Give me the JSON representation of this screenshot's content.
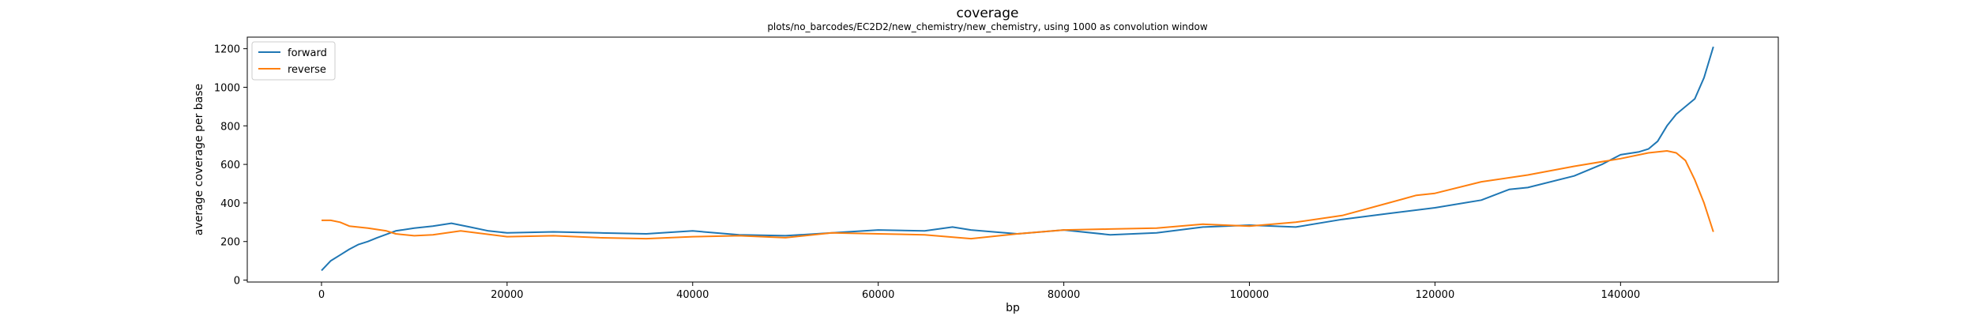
{
  "chart_data": {
    "type": "line",
    "title": "coverage",
    "subtitle": "plots/no_barcodes/EC2D2/new_chemistry/new_chemistry, using 1000 as convolution window",
    "xlabel": "bp",
    "ylabel": "average coverage per base",
    "xlim": [
      -8000,
      157000
    ],
    "ylim": [
      -10,
      1260
    ],
    "xticks": [
      0,
      20000,
      40000,
      60000,
      80000,
      100000,
      120000,
      140000
    ],
    "yticks": [
      0,
      200,
      400,
      600,
      800,
      1000,
      1200
    ],
    "grid": false,
    "legend_position": "top-left",
    "colors": {
      "forward": "#1f77b4",
      "reverse": "#ff7f0e"
    },
    "series": [
      {
        "name": "forward",
        "x": [
          0,
          1000,
          2000,
          3000,
          4000,
          5000,
          6000,
          8000,
          10000,
          12000,
          14000,
          16000,
          18000,
          20000,
          25000,
          30000,
          35000,
          40000,
          45000,
          50000,
          55000,
          60000,
          65000,
          68000,
          70000,
          75000,
          80000,
          85000,
          90000,
          95000,
          100000,
          105000,
          110000,
          115000,
          120000,
          125000,
          128000,
          130000,
          135000,
          138000,
          140000,
          142000,
          143000,
          144000,
          145000,
          146000,
          147000,
          148000,
          149000,
          150000
        ],
        "values": [
          50,
          100,
          130,
          160,
          185,
          200,
          220,
          255,
          270,
          280,
          295,
          275,
          255,
          245,
          250,
          245,
          240,
          255,
          235,
          230,
          245,
          260,
          255,
          275,
          260,
          240,
          260,
          235,
          245,
          275,
          285,
          275,
          315,
          345,
          375,
          415,
          470,
          480,
          540,
          600,
          650,
          665,
          680,
          720,
          800,
          860,
          900,
          940,
          1050,
          1210
        ]
      },
      {
        "name": "reverse",
        "x": [
          0,
          1000,
          2000,
          3000,
          5000,
          7000,
          8000,
          10000,
          12000,
          15000,
          20000,
          25000,
          30000,
          35000,
          40000,
          45000,
          50000,
          55000,
          60000,
          65000,
          70000,
          75000,
          80000,
          85000,
          90000,
          95000,
          100000,
          105000,
          110000,
          115000,
          118000,
          120000,
          125000,
          130000,
          135000,
          140000,
          143000,
          145000,
          146000,
          147000,
          148000,
          149000,
          150000
        ],
        "values": [
          310,
          310,
          300,
          280,
          270,
          255,
          240,
          230,
          235,
          255,
          225,
          230,
          220,
          215,
          225,
          230,
          220,
          245,
          240,
          235,
          215,
          240,
          260,
          265,
          270,
          290,
          280,
          300,
          335,
          400,
          440,
          450,
          510,
          545,
          590,
          630,
          660,
          670,
          660,
          620,
          520,
          400,
          250
        ]
      }
    ]
  }
}
